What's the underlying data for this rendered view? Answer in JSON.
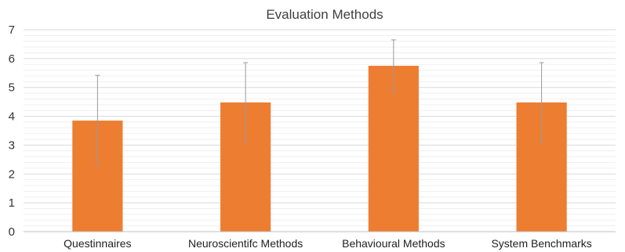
{
  "chart_data": {
    "type": "bar",
    "title": "Evaluation Methods",
    "xlabel": "",
    "ylabel": "",
    "categories": [
      "Questinnaires",
      "Neuroscientifc Methods",
      "Behavioural Methods",
      "System Benchmarks"
    ],
    "series": [
      {
        "values": [
          3.85,
          4.48,
          5.75,
          4.48
        ],
        "error": [
          1.57,
          1.38,
          0.9,
          1.38
        ]
      }
    ],
    "ylim": [
      0,
      7
    ],
    "yticks": [
      0,
      1,
      2,
      3,
      4,
      5,
      6,
      7
    ],
    "minor_gridlines": true,
    "grid": true,
    "legend": "none",
    "bar_color": "#ed7d31",
    "error_bar_color": "#9a9a9a"
  }
}
